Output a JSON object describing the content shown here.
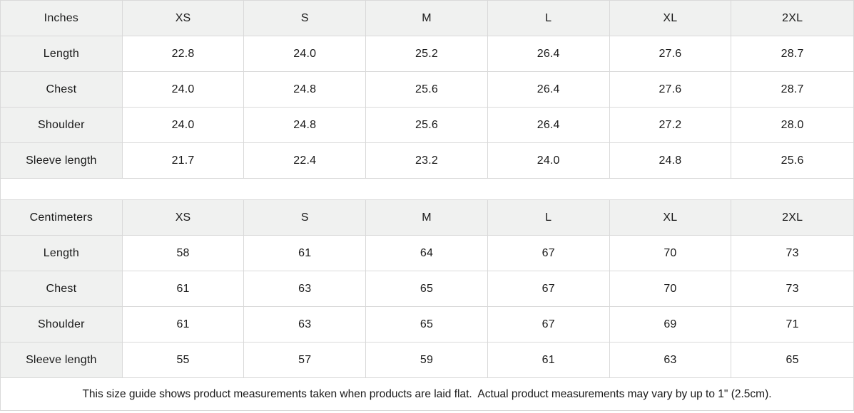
{
  "theme": {
    "header_bg": "#f0f1f0",
    "border_color": "#d9d9d9",
    "text_color": "#191919",
    "background": "#ffffff"
  },
  "size_guide": {
    "columns": [
      "XS",
      "S",
      "M",
      "L",
      "XL",
      "2XL"
    ],
    "tables": [
      {
        "unit_label": "Inches",
        "rows": [
          {
            "label": "Length",
            "values": [
              "22.8",
              "24.0",
              "25.2",
              "26.4",
              "27.6",
              "28.7"
            ]
          },
          {
            "label": "Chest",
            "values": [
              "24.0",
              "24.8",
              "25.6",
              "26.4",
              "27.6",
              "28.7"
            ]
          },
          {
            "label": "Shoulder",
            "values": [
              "24.0",
              "24.8",
              "25.6",
              "26.4",
              "27.2",
              "28.0"
            ]
          },
          {
            "label": "Sleeve length",
            "values": [
              "21.7",
              "22.4",
              "23.2",
              "24.0",
              "24.8",
              "25.6"
            ]
          }
        ]
      },
      {
        "unit_label": "Centimeters",
        "rows": [
          {
            "label": "Length",
            "values": [
              "58",
              "61",
              "64",
              "67",
              "70",
              "73"
            ]
          },
          {
            "label": "Chest",
            "values": [
              "61",
              "63",
              "65",
              "67",
              "70",
              "73"
            ]
          },
          {
            "label": "Shoulder",
            "values": [
              "61",
              "63",
              "65",
              "67",
              "69",
              "71"
            ]
          },
          {
            "label": "Sleeve length",
            "values": [
              "55",
              "57",
              "59",
              "61",
              "63",
              "65"
            ]
          }
        ]
      }
    ],
    "footnote": "This size guide shows product measurements taken when products are laid flat.  Actual product measurements may vary by up to 1\" (2.5cm)."
  }
}
